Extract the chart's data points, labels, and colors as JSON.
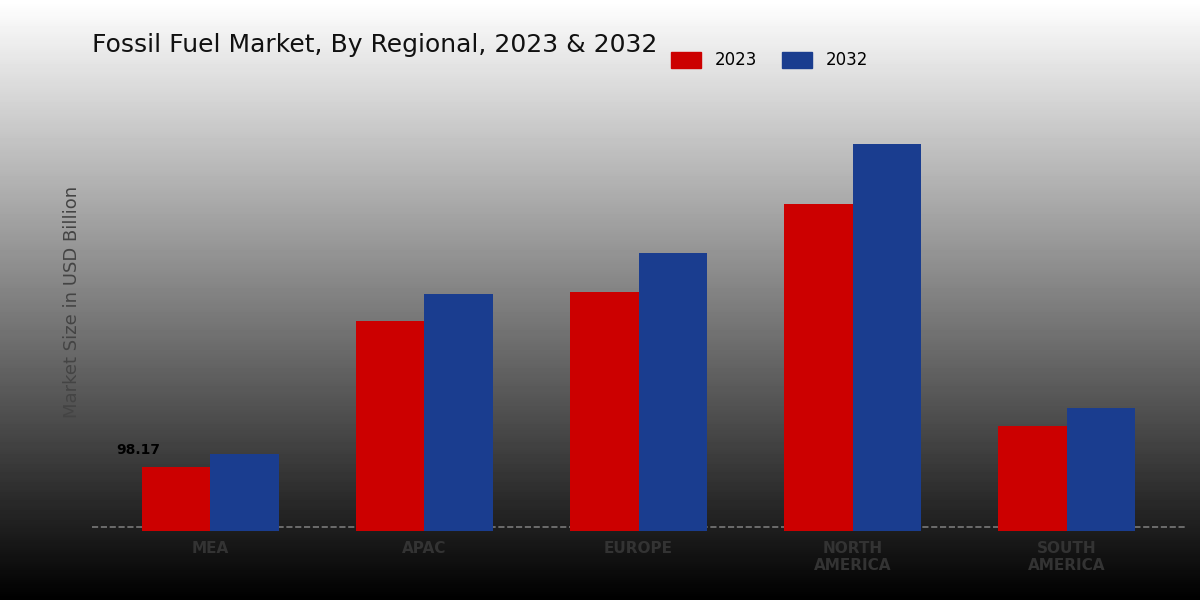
{
  "title": "Fossil Fuel Market, By Regional, 2023 & 2032",
  "ylabel": "Market Size in USD Billion",
  "categories": [
    "MEA",
    "APAC",
    "EUROPE",
    "NORTH\nAMERICA",
    "SOUTH\nAMERICA"
  ],
  "values_2023": [
    98.17,
    320,
    365,
    500,
    160
  ],
  "values_2032": [
    118,
    362,
    425,
    592,
    188
  ],
  "color_2023": "#cc0000",
  "color_2032": "#1a3d8f",
  "annotation_mea": "98.17",
  "legend_labels": [
    "2023",
    "2032"
  ],
  "bar_width": 0.32,
  "ylim": [
    0,
    700
  ],
  "title_fontsize": 18,
  "axis_label_fontsize": 13,
  "tick_fontsize": 11,
  "grad_top": "#f5f5f5",
  "grad_bottom": "#d8d8d8"
}
